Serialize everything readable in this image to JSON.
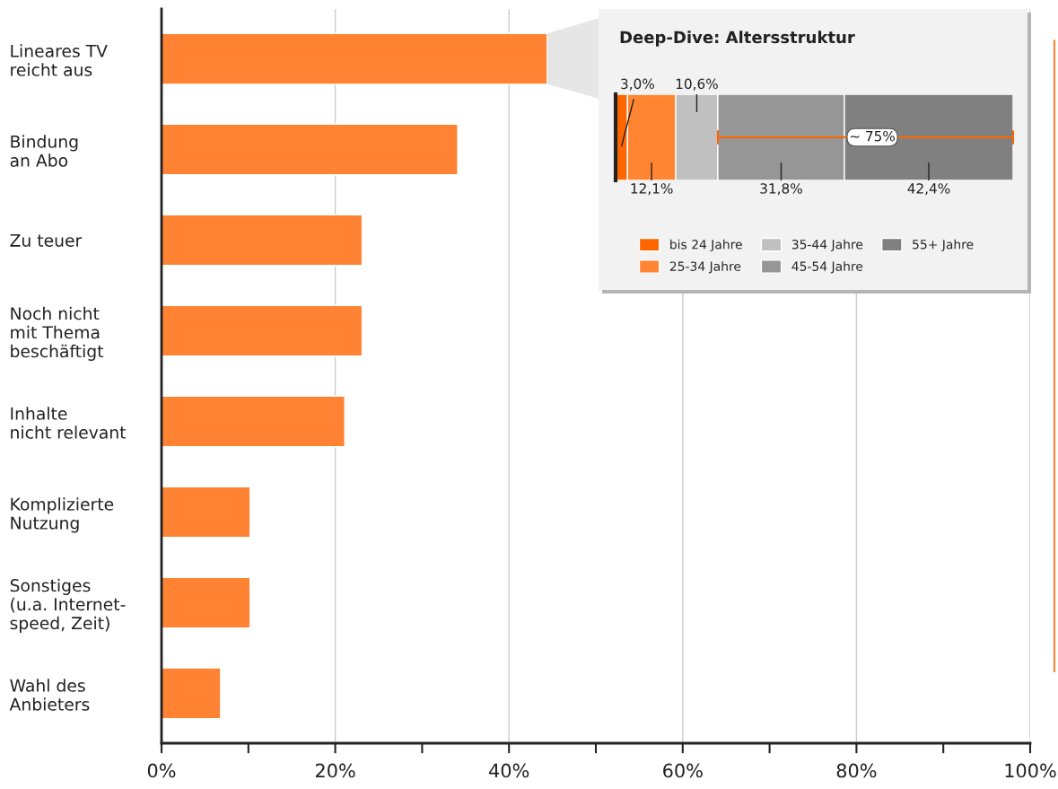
{
  "chart_data": [
    {
      "type": "bar",
      "orientation": "horizontal",
      "categories": [
        "Lineares TV\nreicht aus",
        "Bindung\nan Abo",
        "Zu teuer",
        "Noch nicht\nmit Thema\nbeschäftigt",
        "Inhalte\nnicht relevant",
        "Komplizierte\nNutzung",
        "Sonstiges\n(u.a. Internet-\nspeed, Zeit)",
        "Wahl des\nAnbieters"
      ],
      "values": [
        44.4,
        34.1,
        23.1,
        23.1,
        21.1,
        10.2,
        10.2,
        6.8
      ],
      "color": "#ff8333",
      "xlim": [
        0,
        100
      ],
      "xticks": [
        {
          "value": 0,
          "label": "0%"
        },
        {
          "value": 10,
          "label": null
        },
        {
          "value": 20,
          "label": "20%"
        },
        {
          "value": 30,
          "label": null
        },
        {
          "value": 40,
          "label": "40%"
        },
        {
          "value": 50,
          "label": null
        },
        {
          "value": 60,
          "label": "60%"
        },
        {
          "value": 70,
          "label": null
        },
        {
          "value": 80,
          "label": "80%"
        },
        {
          "value": 90,
          "label": null
        },
        {
          "value": 100,
          "label": "100%"
        }
      ],
      "grid": "x",
      "legend": false
    },
    {
      "type": "bar",
      "orientation": "horizontal",
      "stacked": true,
      "title": "Deep-Dive: Altersstruktur",
      "categories": [
        null
      ],
      "series": [
        {
          "name": "bis 24 Jahre",
          "color": "#ff6600",
          "values": [
            3.0
          ],
          "value_labels": [
            "3,0%"
          ]
        },
        {
          "name": "25-34 Jahre",
          "color": "#ff8533",
          "values": [
            12.1
          ],
          "value_labels": [
            "12,1%"
          ]
        },
        {
          "name": "35-44 Jahre",
          "color": "#c0c0c0",
          "values": [
            10.6
          ],
          "value_labels": [
            "10,6%"
          ]
        },
        {
          "name": "45-54 Jahre",
          "color": "#969696",
          "values": [
            31.8
          ],
          "value_labels": [
            "31,8%"
          ]
        },
        {
          "name": "55+ Jahre",
          "color": "#808080",
          "values": [
            42.4
          ],
          "value_labels": [
            "42,4%"
          ]
        }
      ],
      "annotations": [
        "~ 75%"
      ],
      "legend": "bottom"
    }
  ]
}
